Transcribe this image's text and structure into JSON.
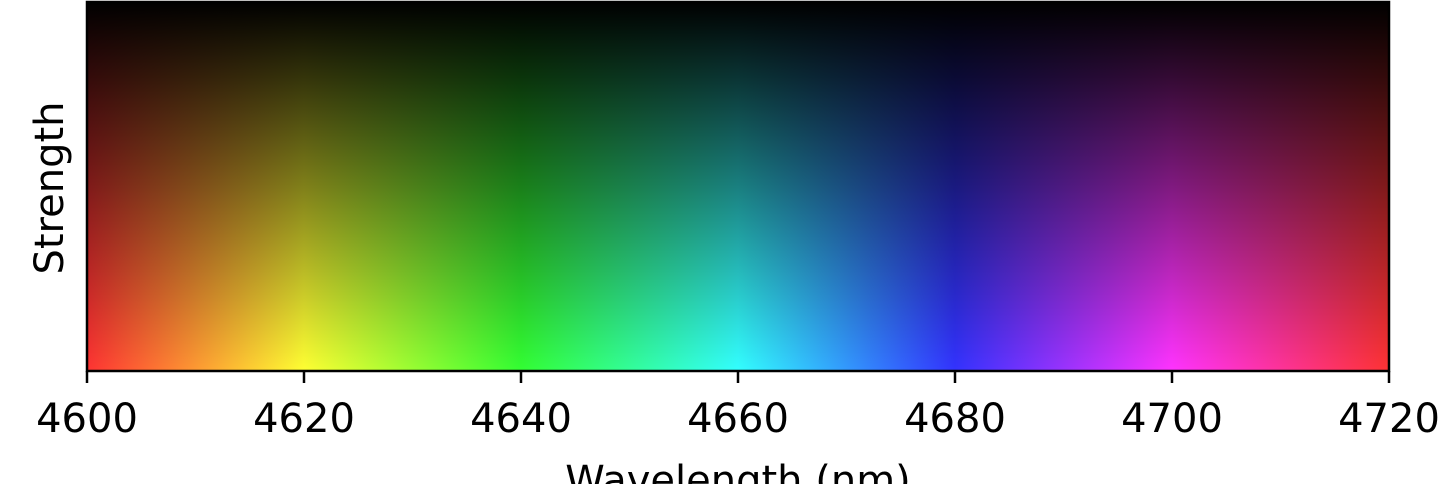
{
  "chart_data": {
    "type": "heatmap",
    "title": "",
    "xlabel": "Wavelength (nm)",
    "ylabel": "Strength",
    "xlim": [
      4600,
      4720
    ],
    "x_ticks": [
      "4600",
      "4620",
      "4640",
      "4660",
      "4680",
      "4700",
      "4720"
    ],
    "y_ticks": [],
    "grid": false,
    "legend": "none",
    "color_stops": [
      {
        "x": 4600,
        "color": "#ff3333"
      },
      {
        "x": 4620,
        "color": "#ffff33"
      },
      {
        "x": 4640,
        "color": "#33ff33"
      },
      {
        "x": 4660,
        "color": "#33ffff"
      },
      {
        "x": 4680,
        "color": "#3333ff"
      },
      {
        "x": 4700,
        "color": "#ff33ff"
      },
      {
        "x": 4720,
        "color": "#ff3333"
      }
    ],
    "strength_gradient": {
      "top_color": "#000000",
      "bottom_color": "full hue"
    }
  }
}
